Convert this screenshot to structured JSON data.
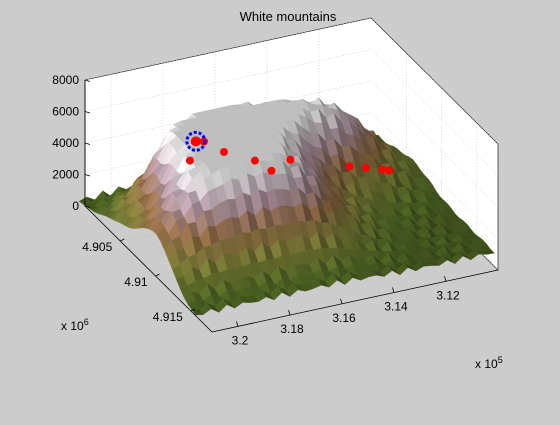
{
  "chart_data": {
    "type": "surface3d",
    "title": "White mountains",
    "colormap": [
      "#2f3d12",
      "#5f7a2a",
      "#8f8f3f",
      "#a77a4f",
      "#c7a7b7",
      "#ffffff"
    ],
    "colors": {
      "figure_background": "#cccccc",
      "axes_background": "#ffffff",
      "marker": "#ff0000",
      "highlight_marker": "#0000ff"
    },
    "grid": true,
    "z_axis": {
      "ticks": [
        0,
        2000,
        4000,
        6000,
        8000
      ],
      "tick_labels": [
        "0",
        "2000",
        "4000",
        "6000",
        "8000"
      ],
      "range": [
        0,
        8000
      ]
    },
    "y_axis": {
      "ticks": [
        4.905,
        4.91,
        4.915
      ],
      "tick_labels": [
        "4.905",
        "4.91",
        "4.915"
      ],
      "multiplier": "x 10",
      "exponent": "6",
      "range": [
        4.9,
        4.918
      ]
    },
    "x_axis": {
      "ticks": [
        3.2,
        3.18,
        3.16,
        3.14,
        3.12
      ],
      "tick_labels": [
        "3.2",
        "3.18",
        "3.16",
        "3.14",
        "3.12"
      ],
      "multiplier": "x 10",
      "exponent": "5",
      "range": [
        3.1,
        3.21
      ]
    },
    "peaks": [
      {
        "x": 3.185,
        "y": 4.9065,
        "z": 6100
      },
      {
        "x": 3.16,
        "y": 4.9065,
        "z": 5300
      },
      {
        "x": 3.13,
        "y": 4.906,
        "z": 4400
      },
      {
        "x": 3.185,
        "y": 4.911,
        "z": 4200
      },
      {
        "x": 3.16,
        "y": 4.912,
        "z": 3500
      },
      {
        "x": 3.205,
        "y": 4.912,
        "z": 2600
      }
    ],
    "red_markers": [
      {
        "x": 3.185,
        "y": 4.9065,
        "z": 6100
      },
      {
        "x": 3.19,
        "y": 4.9075,
        "z": 5500
      },
      {
        "x": 3.18,
        "y": 4.9058,
        "z": 5600
      },
      {
        "x": 3.175,
        "y": 4.9068,
        "z": 5200
      },
      {
        "x": 3.165,
        "y": 4.9075,
        "z": 4600
      },
      {
        "x": 3.16,
        "y": 4.908,
        "z": 4000
      },
      {
        "x": 3.15,
        "y": 4.907,
        "z": 3900
      },
      {
        "x": 3.13,
        "y": 4.908,
        "z": 3200
      },
      {
        "x": 3.125,
        "y": 4.9085,
        "z": 3150
      },
      {
        "x": 3.12,
        "y": 4.909,
        "z": 3100
      },
      {
        "x": 3.118,
        "y": 4.9092,
        "z": 3050
      }
    ],
    "highlight_marker": {
      "x": 3.185,
      "y": 4.9065,
      "z": 6100
    }
  }
}
